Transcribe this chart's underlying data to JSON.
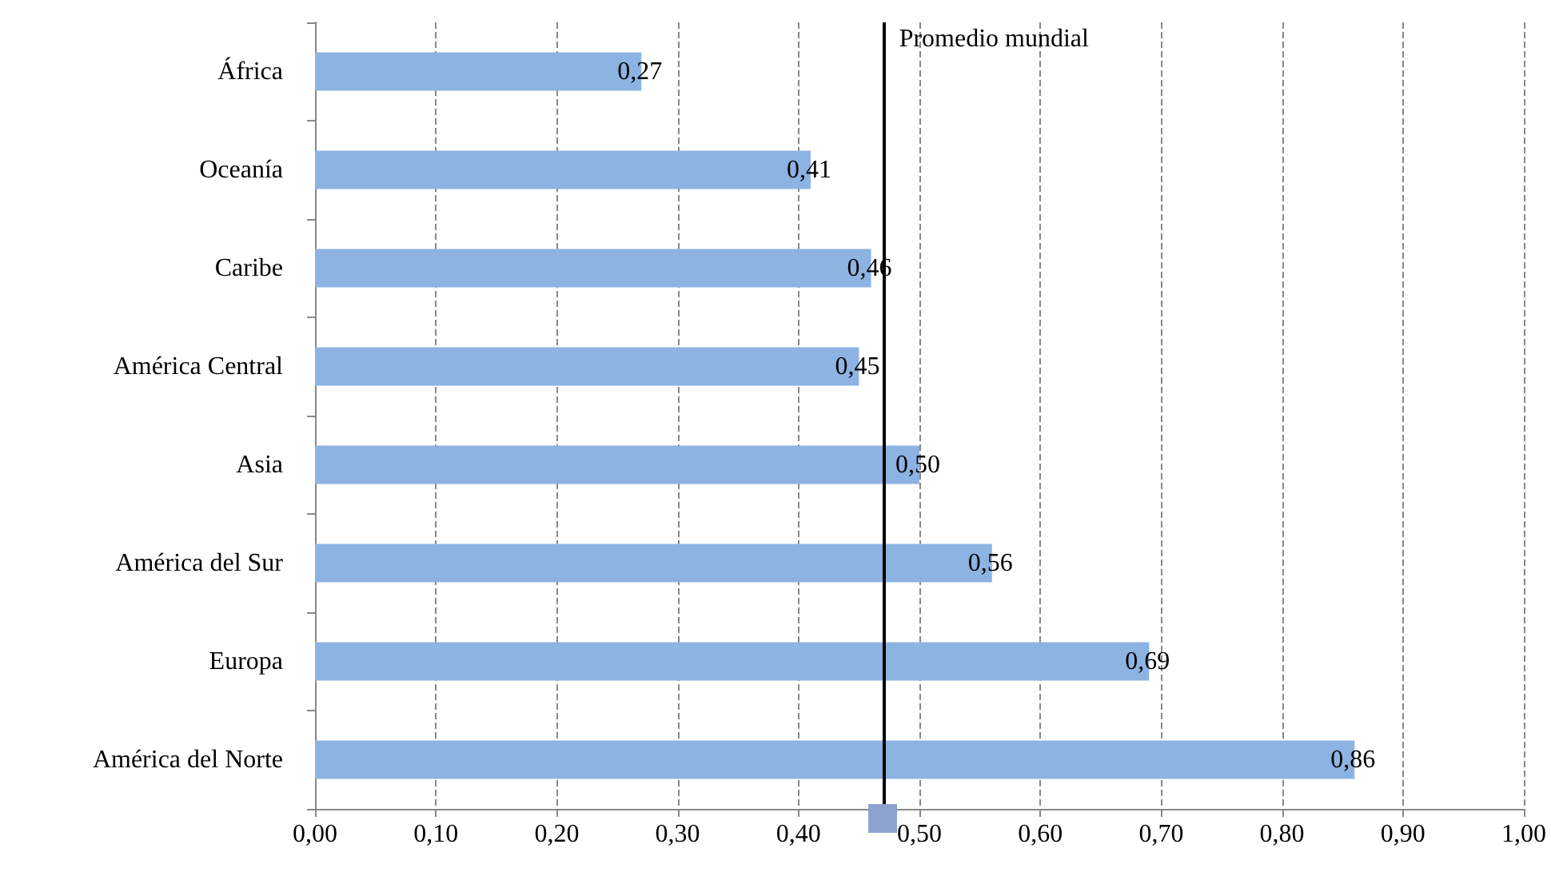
{
  "chart_data": {
    "type": "bar",
    "orientation": "horizontal",
    "categories": [
      "África",
      "Oceanía",
      "Caribe",
      "América Central",
      "Asia",
      "América del Sur",
      "Europa",
      "América del Norte"
    ],
    "values": [
      0.27,
      0.41,
      0.46,
      0.45,
      0.5,
      0.56,
      0.69,
      0.86
    ],
    "value_labels": [
      "0,27",
      "0,41",
      "0,46",
      "0,45",
      "0,50",
      "0,56",
      "0,69",
      "0,86"
    ],
    "color": "#8db3e2",
    "xlim": [
      0,
      1
    ],
    "xticks": [
      {
        "value": 0,
        "label": "0,00"
      },
      {
        "value": 0.1,
        "label": "0,10"
      },
      {
        "value": 0.2,
        "label": "0,20"
      },
      {
        "value": 0.3,
        "label": "0,30"
      },
      {
        "value": 0.4,
        "label": "0,40"
      },
      {
        "value": 0.5,
        "label": "0,50"
      },
      {
        "value": 0.6,
        "label": "0,60"
      },
      {
        "value": 0.7,
        "label": "0,70"
      },
      {
        "value": 0.8,
        "label": "0,80"
      },
      {
        "value": 0.9,
        "label": "0,90"
      },
      {
        "value": 1,
        "label": "1,00"
      }
    ],
    "grid": "x",
    "ref_lines": [
      {
        "axis": "x",
        "value": 0.47,
        "label": "Promedio mundial",
        "color": "#000000"
      }
    ]
  }
}
